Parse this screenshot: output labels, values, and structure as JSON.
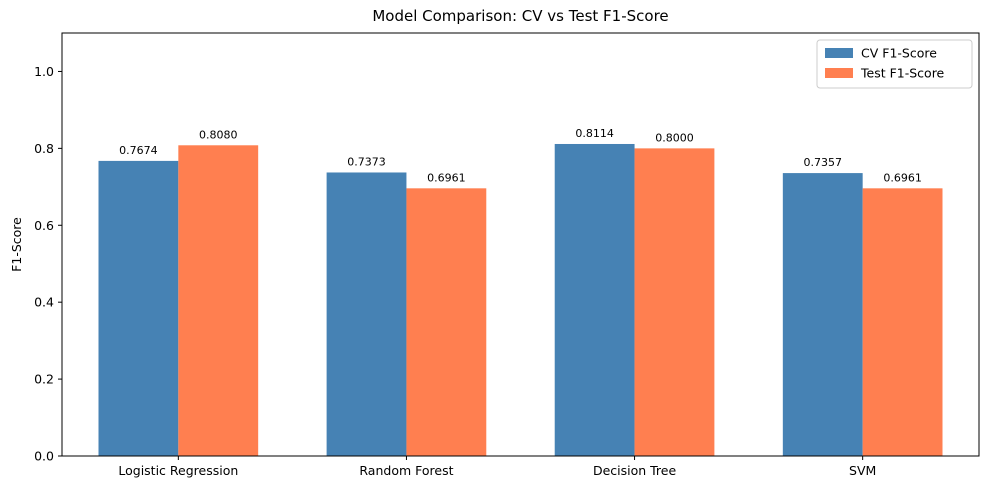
{
  "chart_data": {
    "type": "bar",
    "title": "Model Comparison: CV vs Test F1-Score",
    "xlabel": "",
    "ylabel": "F1-Score",
    "ylim": [
      0,
      1.1
    ],
    "yticks": [
      "0.0",
      "0.2",
      "0.4",
      "0.6",
      "0.8",
      "1.0"
    ],
    "ytick_values": [
      0,
      0.2,
      0.4,
      0.6,
      0.8,
      1.0
    ],
    "categories": [
      "Logistic Regression",
      "Random Forest",
      "Decision Tree",
      "SVM"
    ],
    "series": [
      {
        "name": "CV F1-Score",
        "color": "#4682b4",
        "values": [
          0.7674,
          0.7373,
          0.8114,
          0.7357
        ],
        "labels": [
          "0.7674",
          "0.7373",
          "0.8114",
          "0.7357"
        ]
      },
      {
        "name": "Test F1-Score",
        "color": "#ff7f50",
        "values": [
          0.808,
          0.6961,
          0.8,
          0.6961
        ],
        "labels": [
          "0.8080",
          "0.6961",
          "0.8000",
          "0.6961"
        ]
      }
    ],
    "grid": false,
    "legend_position": "top-right"
  }
}
